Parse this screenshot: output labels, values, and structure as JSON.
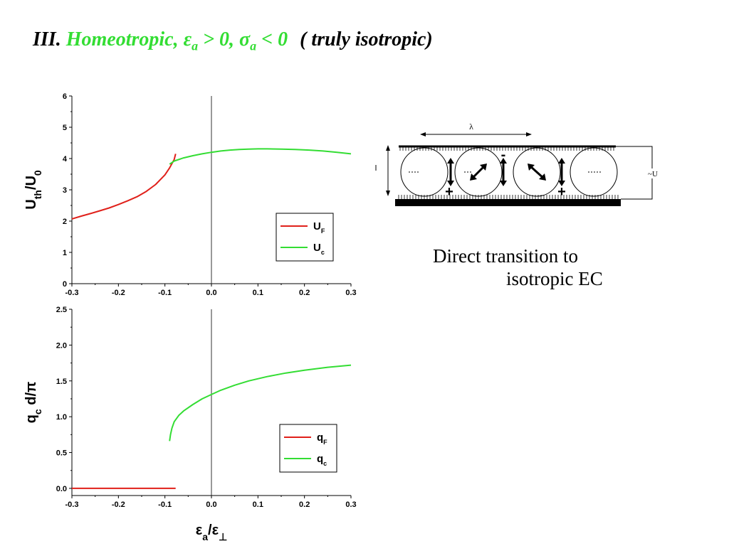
{
  "title": {
    "prefix": "III.",
    "highlight_word": "Homeotropic,",
    "eps_symbol": "ε",
    "eps_sub": "a",
    "eps_cond": " > 0, ",
    "sigma_symbol": "σ",
    "sigma_sub": "a",
    "sigma_cond": " < 0",
    "suffix": "( truly isotropic)",
    "highlight_color": "#33dd33"
  },
  "caption": {
    "line1": "Direct transition to",
    "line2": "isotropic EC"
  },
  "diagram": {
    "lambda_label": "λ",
    "voltage_label": "~U",
    "charge_minus": "-",
    "charge_plus": "+"
  },
  "chart_data": [
    {
      "type": "line",
      "ylabel": "U_th/U_0",
      "ylabel_main": "U",
      "ylabel_sub1": "th",
      "ylabel_mid": "/U",
      "ylabel_sub2": "0",
      "xlim": [
        -0.3,
        0.3
      ],
      "ylim": [
        0,
        6
      ],
      "xticks": [
        "-0.3",
        "-0.2",
        "-0.1",
        "0.0",
        "0.1",
        "0.2",
        "0.3"
      ],
      "yticks": [
        "0",
        "1",
        "2",
        "3",
        "4",
        "5",
        "6"
      ],
      "legend_position": "bottom-right",
      "series": [
        {
          "name": "U_F",
          "name_main": "U",
          "name_sub": "F",
          "color": "#e0201a",
          "x": [
            -0.3,
            -0.28,
            -0.26,
            -0.24,
            -0.22,
            -0.2,
            -0.18,
            -0.16,
            -0.14,
            -0.12,
            -0.1,
            -0.09,
            -0.08,
            -0.077
          ],
          "y": [
            2.07,
            2.16,
            2.24,
            2.33,
            2.42,
            2.53,
            2.65,
            2.78,
            2.95,
            3.17,
            3.48,
            3.7,
            3.97,
            4.15
          ]
        },
        {
          "name": "U_c",
          "name_main": "U",
          "name_sub": "c",
          "color": "#33dd33",
          "x": [
            -0.09,
            -0.08,
            -0.06,
            -0.04,
            -0.02,
            0.0,
            0.02,
            0.04,
            0.06,
            0.08,
            0.1,
            0.12,
            0.15,
            0.18,
            0.21,
            0.24,
            0.27,
            0.3
          ],
          "y": [
            3.82,
            3.92,
            4.02,
            4.09,
            4.15,
            4.2,
            4.24,
            4.27,
            4.29,
            4.3,
            4.31,
            4.31,
            4.3,
            4.29,
            4.27,
            4.24,
            4.2,
            4.15
          ]
        }
      ]
    },
    {
      "type": "line",
      "ylabel": "q_c d/π",
      "ylabel_main": "q",
      "ylabel_sub1": "c",
      "ylabel_mid": " d/π",
      "xlabel": "ε_a/ε_⊥",
      "xlabel_main": "ε",
      "xlabel_sub1": "a",
      "xlabel_mid": "/ε",
      "xlabel_sub2": "⊥",
      "xlim": [
        -0.3,
        0.3
      ],
      "ylim": [
        -0.1,
        2.5
      ],
      "xticks": [
        "-0.3",
        "-0.2",
        "-0.1",
        "0.0",
        "0.1",
        "0.2",
        "0.3"
      ],
      "yticks": [
        "0.0",
        "0.5",
        "1.0",
        "1.5",
        "2.0",
        "2.5"
      ],
      "legend_position": "bottom-right",
      "series": [
        {
          "name": "q_F",
          "name_main": "q",
          "name_sub": "F",
          "color": "#e0201a",
          "x": [
            -0.3,
            -0.077
          ],
          "y": [
            0.0,
            0.0
          ]
        },
        {
          "name": "q_c",
          "name_main": "q",
          "name_sub": "c",
          "color": "#33dd33",
          "x": [
            -0.09,
            -0.088,
            -0.085,
            -0.08,
            -0.07,
            -0.06,
            -0.04,
            -0.02,
            0.0,
            0.02,
            0.05,
            0.08,
            0.12,
            0.16,
            0.2,
            0.25,
            0.3
          ],
          "y": [
            0.66,
            0.75,
            0.84,
            0.93,
            1.02,
            1.08,
            1.17,
            1.25,
            1.31,
            1.37,
            1.44,
            1.5,
            1.56,
            1.61,
            1.65,
            1.69,
            1.72
          ]
        }
      ]
    }
  ]
}
